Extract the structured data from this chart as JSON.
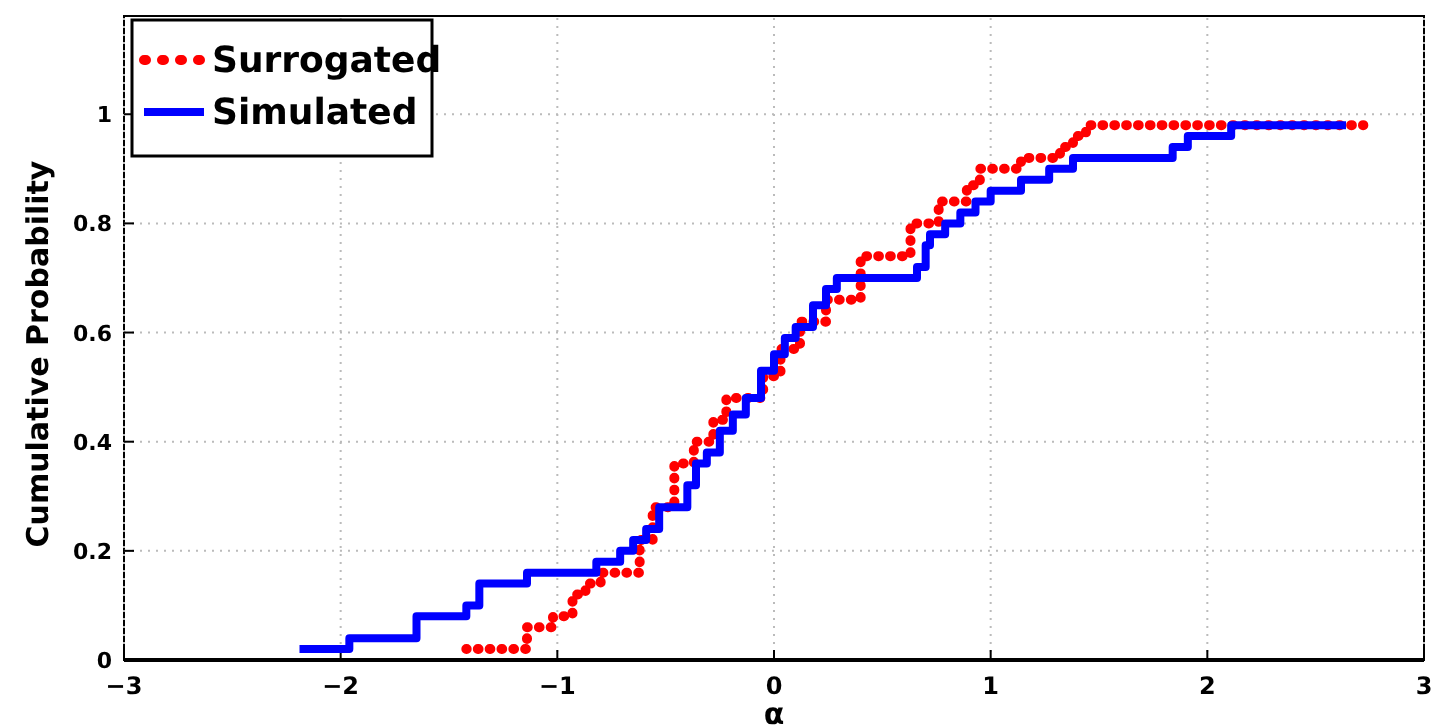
{
  "chart_data": {
    "type": "step",
    "xlabel": "α",
    "ylabel": "Cumulative Probability",
    "xlim": [
      -3,
      3
    ],
    "ylim": [
      0,
      1.18
    ],
    "xticks": [
      {
        "value": -3,
        "label": "−3"
      },
      {
        "value": -2,
        "label": "−2"
      },
      {
        "value": -1,
        "label": "−1"
      },
      0,
      1,
      2,
      3
    ],
    "yticks": [
      0,
      0.2,
      0.4,
      0.6,
      0.8,
      1
    ],
    "grid": true,
    "legend": "top left",
    "series": [
      {
        "name": "Surrogated",
        "color": "#ff0000",
        "line_style": "dotted",
        "x": [
          -1.42,
          -1.14,
          -1.02,
          -0.93,
          -0.87,
          -0.8,
          -0.62,
          -0.56,
          -0.46,
          -0.37,
          -0.28,
          -0.22,
          -0.05,
          0.03,
          0.12,
          0.24,
          0.4,
          0.63,
          0.76,
          0.89,
          0.95,
          1.14,
          1.32,
          1.38,
          1.44,
          2.72
        ],
        "values": [
          0.02,
          0.06,
          0.08,
          0.12,
          0.14,
          0.16,
          0.22,
          0.28,
          0.36,
          0.4,
          0.44,
          0.48,
          0.52,
          0.57,
          0.62,
          0.66,
          0.74,
          0.8,
          0.84,
          0.87,
          0.9,
          0.92,
          0.94,
          0.96,
          0.98,
          0.98
        ]
      },
      {
        "name": "Simulated",
        "color": "#0000ff",
        "line_style": "solid",
        "x": [
          -2.19,
          -1.96,
          -1.65,
          -1.42,
          -1.36,
          -1.14,
          -0.82,
          -0.71,
          -0.65,
          -0.59,
          -0.53,
          -0.4,
          -0.36,
          -0.31,
          -0.25,
          -0.19,
          -0.13,
          -0.06,
          0,
          0.05,
          0.1,
          0.18,
          0.24,
          0.29,
          0.66,
          0.7,
          0.72,
          0.79,
          0.86,
          0.93,
          1.0,
          1.14,
          1.27,
          1.38,
          1.84,
          1.91,
          2.11,
          2.64
        ],
        "values": [
          0.02,
          0.04,
          0.08,
          0.1,
          0.14,
          0.16,
          0.18,
          0.2,
          0.22,
          0.24,
          0.28,
          0.32,
          0.36,
          0.38,
          0.42,
          0.45,
          0.48,
          0.53,
          0.56,
          0.59,
          0.61,
          0.65,
          0.68,
          0.7,
          0.72,
          0.76,
          0.78,
          0.8,
          0.82,
          0.84,
          0.86,
          0.88,
          0.9,
          0.92,
          0.94,
          0.96,
          0.98,
          0.98
        ]
      }
    ]
  }
}
